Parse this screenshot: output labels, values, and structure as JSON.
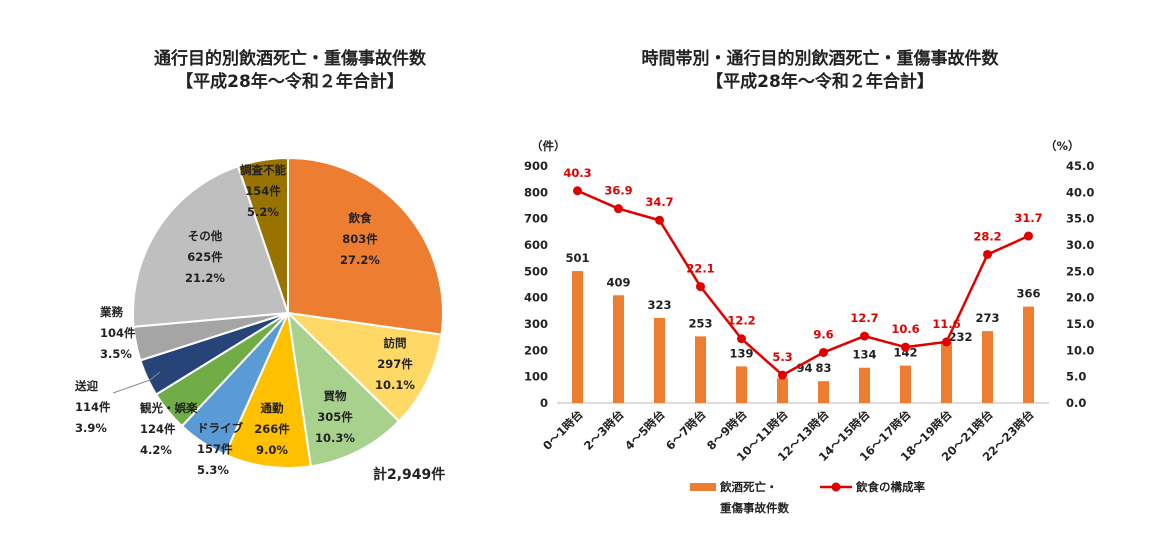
{
  "pie": {
    "title_line1": "通行目的別飲酒死亡・重傷事故件数",
    "title_line2": "【平成28年～令和２年合計】",
    "total": "計2,949件",
    "chart_data": {
      "type": "pie",
      "slices": [
        {
          "name": "飲食",
          "count": "803件",
          "pct": "27.2%",
          "value": 803,
          "color": "#ED7D31"
        },
        {
          "name": "訪問",
          "count": "297件",
          "pct": "10.1%",
          "value": 297,
          "color": "#FFD966"
        },
        {
          "name": "買物",
          "count": "305件",
          "pct": "10.3%",
          "value": 305,
          "color": "#A9D18E"
        },
        {
          "name": "通勤",
          "count": "266件",
          "pct": "9.0%",
          "value": 266,
          "color": "#FFC000"
        },
        {
          "name": "ドライブ",
          "count": "157件",
          "pct": "5.3%",
          "value": 157,
          "color": "#5B9BD5"
        },
        {
          "name": "観光・娯楽",
          "count": "124件",
          "pct": "4.2%",
          "value": 124,
          "color": "#70AD47"
        },
        {
          "name": "送迎",
          "count": "114件",
          "pct": "3.9%",
          "value": 114,
          "color": "#264478"
        },
        {
          "name": "業務",
          "count": "104件",
          "pct": "3.5%",
          "value": 104,
          "color": "#A5A5A5"
        },
        {
          "name": "その他",
          "count": "625件",
          "pct": "21.2%",
          "value": 625,
          "color": "#BFBFBF"
        },
        {
          "name": "調査不能",
          "count": "154件",
          "pct": "5.2%",
          "value": 154,
          "color": "#997300"
        }
      ]
    }
  },
  "combo": {
    "title_line1": "時間帯別・通行目的別飲酒死亡・重傷事故件数",
    "title_line2": "【平成28年～令和２年合計】",
    "left_unit": "（件）",
    "right_unit": "（%）",
    "legend_bar_line1": "飲酒死亡・",
    "legend_bar_line2": "重傷事故件数",
    "legend_line": "飲食の構成率",
    "chart_data": {
      "type": "bar+line",
      "categories": [
        "0～1時台",
        "2～3時台",
        "4～5時台",
        "6～7時台",
        "8～9時台",
        "10～11時台",
        "12～13時台",
        "14～15時台",
        "16～17時台",
        "18～19時台",
        "20～21時台",
        "22～23時台"
      ],
      "bar_values": [
        501,
        409,
        323,
        253,
        139,
        94,
        83,
        134,
        142,
        232,
        273,
        366
      ],
      "line_values": [
        40.3,
        36.9,
        34.7,
        22.1,
        12.2,
        5.3,
        9.6,
        12.7,
        10.6,
        11.6,
        28.2,
        31.7
      ],
      "bar_color": "#ED7D31",
      "line_color": "#E00000",
      "y_left_ticks": [
        "0",
        "100",
        "200",
        "300",
        "400",
        "500",
        "600",
        "700",
        "800",
        "900"
      ],
      "y_right_ticks": [
        "0.0",
        "5.0",
        "10.0",
        "15.0",
        "20.0",
        "25.0",
        "30.0",
        "35.0",
        "40.0",
        "45.0"
      ],
      "ylim_left": [
        0,
        900
      ],
      "ylim_right": [
        0,
        45
      ]
    }
  }
}
